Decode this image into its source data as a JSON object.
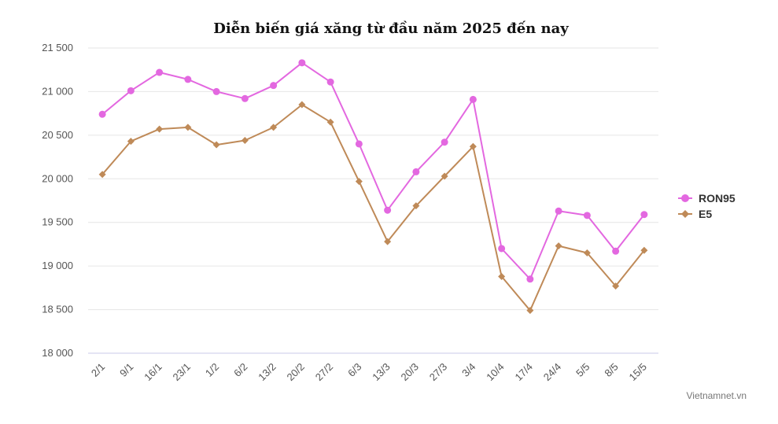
{
  "chart_data": {
    "type": "line",
    "title": "Diễn biến giá xăng từ đầu năm 2025 đến nay",
    "xlabel": "",
    "ylabel": "",
    "categories": [
      "2/1",
      "9/1",
      "16/1",
      "23/1",
      "1/2",
      "6/2",
      "13/2",
      "20/2",
      "27/2",
      "6/3",
      "13/3",
      "20/3",
      "27/3",
      "3/4",
      "10/4",
      "17/4",
      "24/4",
      "5/5",
      "8/5",
      "15/5"
    ],
    "ylim": [
      18000,
      21500
    ],
    "yticks": [
      18000,
      18500,
      19000,
      19500,
      20000,
      20500,
      21000,
      21500
    ],
    "ytick_labels": [
      "18 000",
      "18 500",
      "19 000",
      "19 500",
      "20 000",
      "20 500",
      "21 000",
      "21 500"
    ],
    "grid": true,
    "legend_position": "right",
    "series": [
      {
        "name": "RON95",
        "color": "#e368e0",
        "marker": "circle",
        "values": [
          20740,
          21010,
          21220,
          21140,
          21000,
          20920,
          21070,
          21330,
          21110,
          20400,
          19640,
          20080,
          20420,
          20910,
          19200,
          18850,
          19630,
          19580,
          19170,
          19590
        ]
      },
      {
        "name": "E5",
        "color": "#bf8a58",
        "marker": "diamond",
        "values": [
          20050,
          20430,
          20570,
          20590,
          20390,
          20440,
          20590,
          20850,
          20650,
          19970,
          19280,
          19690,
          20030,
          20370,
          18880,
          18490,
          19230,
          19150,
          18770,
          19180
        ]
      }
    ]
  },
  "source": "Vietnamnet.vn"
}
